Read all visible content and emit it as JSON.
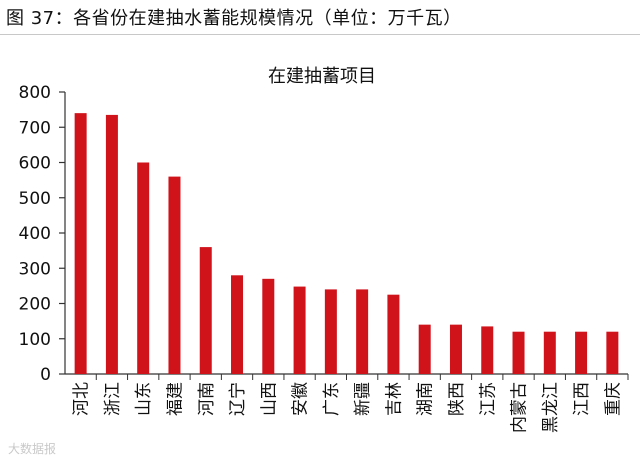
{
  "figure": {
    "title": "图 37：各省份在建抽水蓄能规模情况（单位：万千瓦）"
  },
  "watermark": "大数据报",
  "colors": {
    "bar": "#d0121b",
    "axis": "#333333",
    "rule": "#c8c8c8"
  },
  "chart_data": {
    "type": "bar",
    "title": "在建抽蓄项目",
    "xlabel": "",
    "ylabel": "",
    "ylim": [
      0,
      800
    ],
    "yticks": [
      0,
      100,
      200,
      300,
      400,
      500,
      600,
      700,
      800
    ],
    "categories": [
      "河北",
      "浙江",
      "山东",
      "福建",
      "河南",
      "辽宁",
      "山西",
      "安徽",
      "广东",
      "新疆",
      "吉林",
      "湖南",
      "陕西",
      "江苏",
      "内蒙古",
      "黑龙江",
      "江西",
      "重庆"
    ],
    "values": [
      740,
      735,
      600,
      560,
      360,
      280,
      270,
      248,
      240,
      240,
      225,
      140,
      140,
      135,
      120,
      120,
      120,
      120
    ],
    "grid": false,
    "legend": "none"
  }
}
